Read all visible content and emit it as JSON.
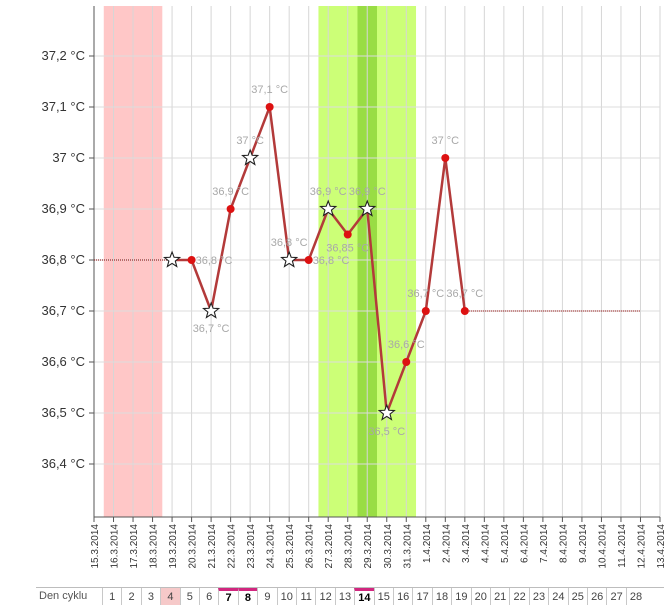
{
  "chart_data": {
    "type": "line",
    "y_unit": "°C",
    "ylim": [
      36.3,
      37.3
    ],
    "y_ticks": [
      "36,4 °C",
      "36,5 °C",
      "36,6 °C",
      "36,7 °C",
      "36,8 °C",
      "36,9 °C",
      "37 °C",
      "37,1 °C",
      "37,2 °C"
    ],
    "y_tick_values": [
      36.4,
      36.5,
      36.6,
      36.7,
      36.8,
      36.9,
      37.0,
      37.1,
      37.2
    ],
    "x_ticks": [
      "15.3.2014",
      "16.3.2014",
      "17.3.2014",
      "18.3.2014",
      "19.3.2014",
      "20.3.2014",
      "21.3.2014",
      "22.3.2014",
      "23.3.2014",
      "24.3.2014",
      "25.3.2014",
      "26.3.2014",
      "27.3.2014",
      "28.3.2014",
      "29.3.2014",
      "30.3.2014",
      "31.3.2014",
      "1.4.2014",
      "2.4.2014",
      "3.4.2014",
      "4.4.2014",
      "5.4.2014",
      "6.4.2014",
      "7.4.2014",
      "8.4.2014",
      "9.4.2014",
      "10.4.2014",
      "11.4.2014",
      "12.4.2014",
      "13.4.2014"
    ],
    "grid": true,
    "period_band": {
      "from": "16.3.2014",
      "to": "18.3.2014",
      "color": "#ffc7c7"
    },
    "fertile_band": {
      "from": "27.3.2014",
      "to": "31.3.2014",
      "color": "#ccff77"
    },
    "ovulation_band": {
      "from": "29.3.2014",
      "to": "29.3.2014",
      "color": "#99dd44"
    },
    "line_color": "#b33a3a",
    "point_color": "#dd1111",
    "points": [
      {
        "x": "19.3.2014",
        "y": 36.8,
        "marker": "star",
        "label": ""
      },
      {
        "x": "20.3.2014",
        "y": 36.8,
        "marker": "dot",
        "label": "36,8 °C"
      },
      {
        "x": "21.3.2014",
        "y": 36.7,
        "marker": "star",
        "label": "36,7 °C"
      },
      {
        "x": "22.3.2014",
        "y": 36.9,
        "marker": "dot",
        "label": "36,9 °C"
      },
      {
        "x": "23.3.2014",
        "y": 37.0,
        "marker": "star",
        "label": "37 °C"
      },
      {
        "x": "24.3.2014",
        "y": 37.1,
        "marker": "dot",
        "label": "37,1 °C"
      },
      {
        "x": "25.3.2014",
        "y": 36.8,
        "marker": "star",
        "label": "36,8 °C"
      },
      {
        "x": "26.3.2014",
        "y": 36.8,
        "marker": "dot",
        "label": "36,8 °C"
      },
      {
        "x": "27.3.2014",
        "y": 36.9,
        "marker": "star",
        "label": "36,9 °C"
      },
      {
        "x": "28.3.2014",
        "y": 36.85,
        "marker": "dot",
        "label": "36,85 °C"
      },
      {
        "x": "29.3.2014",
        "y": 36.9,
        "marker": "star",
        "label": "36,9 °C"
      },
      {
        "x": "30.3.2014",
        "y": 36.5,
        "marker": "star",
        "label": "36,5 °C"
      },
      {
        "x": "31.3.2014",
        "y": 36.6,
        "marker": "dot",
        "label": "36,6 °C"
      },
      {
        "x": "1.4.2014",
        "y": 36.7,
        "marker": "dot",
        "label": "36,7 °C"
      },
      {
        "x": "2.4.2014",
        "y": 37.0,
        "marker": "dot",
        "label": "37 °C"
      },
      {
        "x": "3.4.2014",
        "y": 36.7,
        "marker": "dot",
        "label": "36,7 °C"
      }
    ],
    "coverline_low": {
      "from": "15.3.2014",
      "to": "19.3.2014",
      "y": 36.8
    },
    "coverline_high": {
      "from": "3.4.2014",
      "to": "12.4.2014",
      "y": 36.7
    }
  },
  "cycle_bar": {
    "label": "Den cyklu",
    "days": [
      "1",
      "2",
      "3",
      "4",
      "5",
      "6",
      "7",
      "8",
      "9",
      "10",
      "11",
      "12",
      "13",
      "14",
      "15",
      "16",
      "17",
      "18",
      "19",
      "20",
      "21",
      "22",
      "23",
      "24",
      "25",
      "26",
      "27",
      "28"
    ],
    "period_day": "4",
    "marked_days": [
      "7",
      "8",
      "14"
    ]
  }
}
